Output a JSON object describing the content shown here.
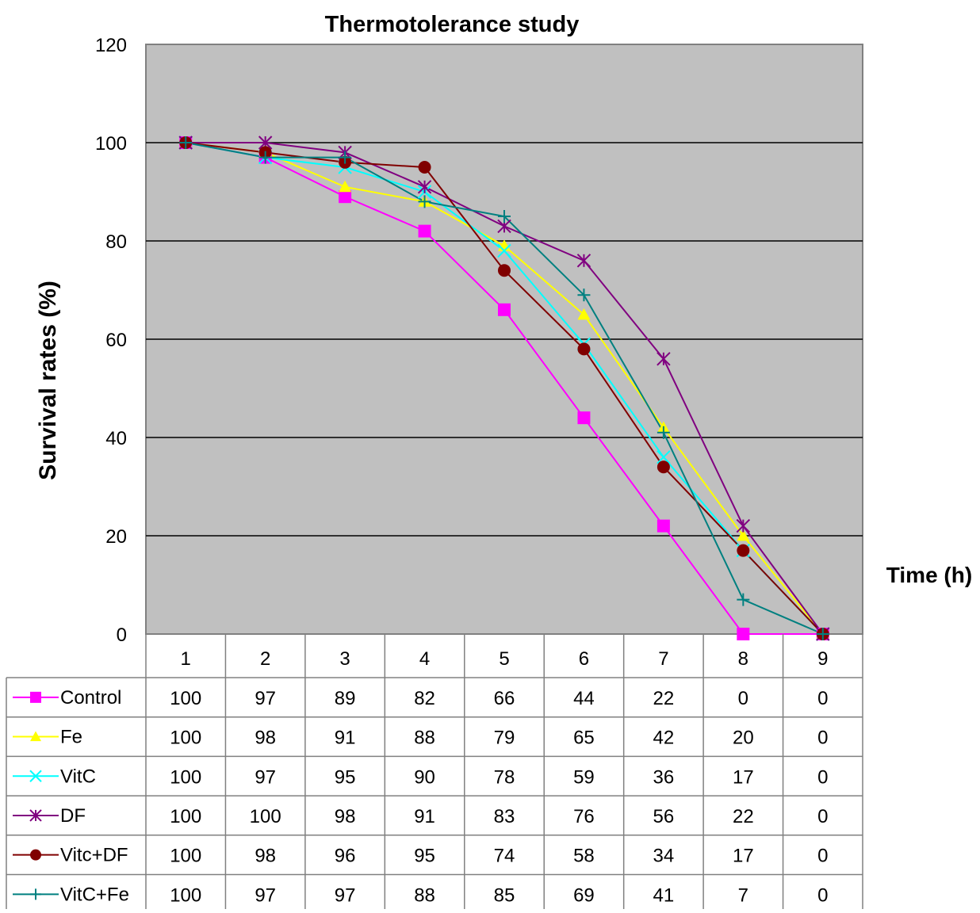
{
  "chart_data": {
    "type": "line",
    "title": "Thermotolerance study",
    "xlabel": "Time (h)",
    "ylabel": "Survival rates (%)",
    "categories": [
      "1",
      "2",
      "3",
      "4",
      "5",
      "6",
      "7",
      "8",
      "9"
    ],
    "ylim": [
      0,
      120
    ],
    "yticks": [
      0,
      20,
      40,
      60,
      80,
      100,
      120
    ],
    "grid": true,
    "plot_background": "#c0c0c0",
    "data_table": true,
    "series": [
      {
        "name": "Control",
        "color": "#ff00ff",
        "marker": "square",
        "values": [
          100,
          97,
          89,
          82,
          66,
          44,
          22,
          0,
          0
        ]
      },
      {
        "name": "Fe",
        "color": "#ffff00",
        "marker": "triangle",
        "values": [
          100,
          98,
          91,
          88,
          79,
          65,
          42,
          20,
          0
        ]
      },
      {
        "name": "VitC",
        "color": "#00ffff",
        "marker": "x",
        "values": [
          100,
          97,
          95,
          90,
          78,
          59,
          36,
          17,
          0
        ]
      },
      {
        "name": "DF",
        "color": "#800080",
        "marker": "star",
        "values": [
          100,
          100,
          98,
          91,
          83,
          76,
          56,
          22,
          0
        ]
      },
      {
        "name": "Vitc+DF",
        "color": "#800000",
        "marker": "circle",
        "values": [
          100,
          98,
          96,
          95,
          74,
          58,
          34,
          17,
          0
        ]
      },
      {
        "name": "VitC+Fe",
        "color": "#008080",
        "marker": "plus",
        "values": [
          100,
          97,
          97,
          88,
          85,
          69,
          41,
          7,
          0
        ]
      }
    ]
  }
}
